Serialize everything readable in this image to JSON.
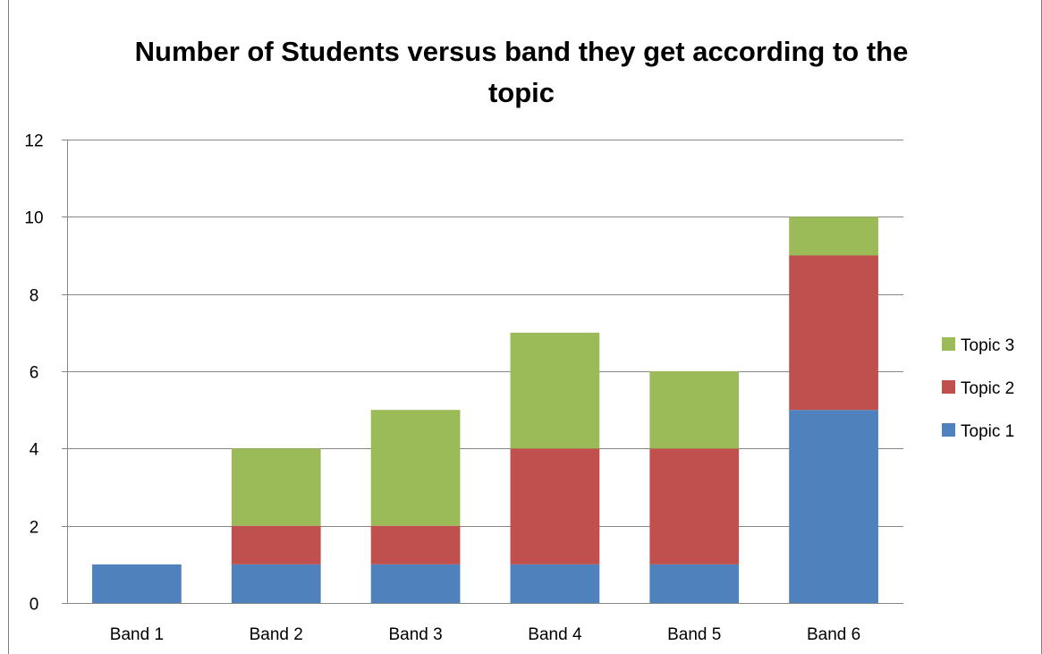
{
  "chart_data": {
    "type": "bar",
    "stacked": true,
    "title_lines": [
      "Number of Students  versus band they get according to the",
      "topic"
    ],
    "categories": [
      "Band 1",
      "Band 2",
      "Band 3",
      "Band 4",
      "Band 5",
      "Band 6"
    ],
    "series": [
      {
        "name": "Topic 1",
        "values": [
          1,
          1,
          1,
          1,
          1,
          5
        ],
        "color": "#4f81bd"
      },
      {
        "name": "Topic 2",
        "values": [
          0,
          1,
          1,
          3,
          3,
          4
        ],
        "color": "#c0504d"
      },
      {
        "name": "Topic 3",
        "values": [
          0,
          2,
          3,
          3,
          2,
          1
        ],
        "color": "#9bbb59"
      }
    ],
    "ylim": [
      0,
      12
    ],
    "yticks": [
      "0",
      "2",
      "4",
      "6",
      "8",
      "10",
      "12"
    ],
    "grid": true,
    "legend_position": "right",
    "xlabel": "",
    "ylabel": ""
  }
}
